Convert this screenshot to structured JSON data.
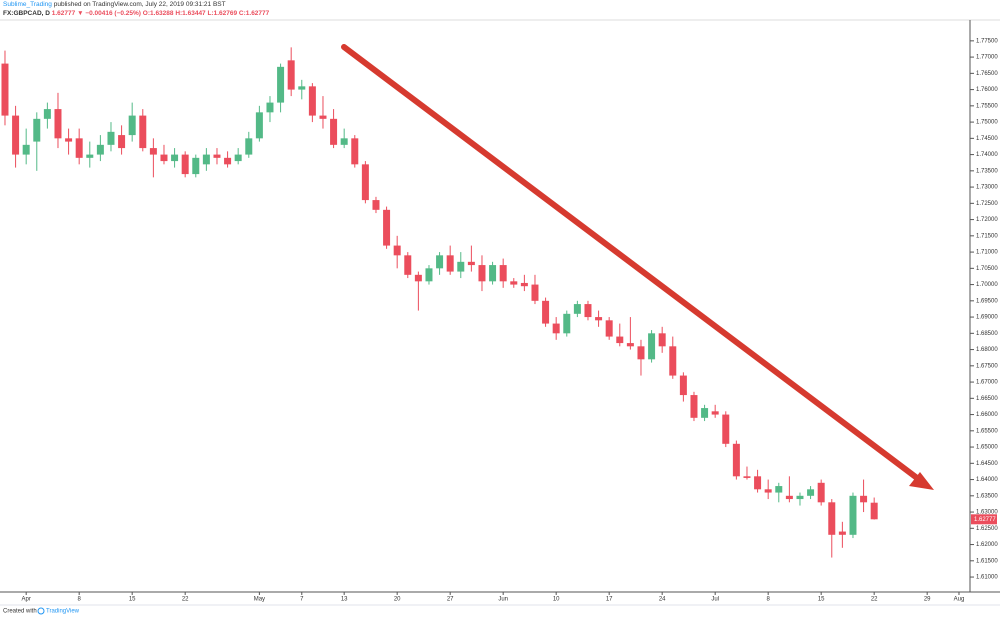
{
  "header": {
    "author": "Sublime_Trading",
    "published": "published on TradingView.com, July 22, 2019 09:31:21 BST",
    "symbol": "FX:GBPCAD, D",
    "last": "1.62777",
    "change": "▼ −0.00416 (−0.25%)",
    "ohlc": "O:1.63288 H:1.63447 L:1.62769 C:1.62777"
  },
  "footer": {
    "created": "Created with",
    "brand": "TradingView"
  },
  "chart_data": {
    "type": "candlestick",
    "up_color": "#53b987",
    "down_color": "#eb4d5c",
    "xlim": [
      -0.47,
      91.04
    ],
    "ylim": [
      1.6054,
      1.7808
    ],
    "xticks": [
      {
        "value": 2,
        "label": "Apr"
      },
      {
        "value": 7,
        "label": "8"
      },
      {
        "value": 12,
        "label": "15"
      },
      {
        "value": 17,
        "label": "22"
      },
      {
        "value": 24,
        "label": "May"
      },
      {
        "value": 28,
        "label": "7"
      },
      {
        "value": 32,
        "label": "13"
      },
      {
        "value": 37,
        "label": "20"
      },
      {
        "value": 42,
        "label": "27"
      },
      {
        "value": 47,
        "label": "Jun"
      },
      {
        "value": 52,
        "label": "10"
      },
      {
        "value": 57,
        "label": "17"
      },
      {
        "value": 62,
        "label": "24"
      },
      {
        "value": 67,
        "label": "Jul"
      },
      {
        "value": 72,
        "label": "8"
      },
      {
        "value": 77,
        "label": "15"
      },
      {
        "value": 82,
        "label": "22"
      },
      {
        "value": 87,
        "label": "29"
      },
      {
        "value": 90,
        "label": "Aug"
      }
    ],
    "yticks": [
      {
        "value": 1.61,
        "label": "1.61000"
      },
      {
        "value": 1.615,
        "label": "1.61500"
      },
      {
        "value": 1.62,
        "label": "1.62000"
      },
      {
        "value": 1.625,
        "label": "1.62500"
      },
      {
        "value": 1.63,
        "label": "1.63000"
      },
      {
        "value": 1.635,
        "label": "1.63500"
      },
      {
        "value": 1.64,
        "label": "1.64000"
      },
      {
        "value": 1.645,
        "label": "1.64500"
      },
      {
        "value": 1.65,
        "label": "1.65000"
      },
      {
        "value": 1.655,
        "label": "1.65500"
      },
      {
        "value": 1.66,
        "label": "1.66000"
      },
      {
        "value": 1.665,
        "label": "1.66500"
      },
      {
        "value": 1.67,
        "label": "1.67000"
      },
      {
        "value": 1.675,
        "label": "1.67500"
      },
      {
        "value": 1.68,
        "label": "1.68000"
      },
      {
        "value": 1.685,
        "label": "1.68500"
      },
      {
        "value": 1.69,
        "label": "1.69000"
      },
      {
        "value": 1.695,
        "label": "1.69500"
      },
      {
        "value": 1.7,
        "label": "1.70000"
      },
      {
        "value": 1.705,
        "label": "1.70500"
      },
      {
        "value": 1.71,
        "label": "1.71000"
      },
      {
        "value": 1.715,
        "label": "1.71500"
      },
      {
        "value": 1.72,
        "label": "1.72000"
      },
      {
        "value": 1.725,
        "label": "1.72500"
      },
      {
        "value": 1.73,
        "label": "1.73000"
      },
      {
        "value": 1.735,
        "label": "1.73500"
      },
      {
        "value": 1.74,
        "label": "1.74000"
      },
      {
        "value": 1.745,
        "label": "1.74500"
      },
      {
        "value": 1.75,
        "label": "1.75000"
      },
      {
        "value": 1.755,
        "label": "1.75500"
      },
      {
        "value": 1.76,
        "label": "1.76000"
      },
      {
        "value": 1.765,
        "label": "1.76500"
      },
      {
        "value": 1.77,
        "label": "1.77000"
      },
      {
        "value": 1.775,
        "label": "1.77500"
      }
    ],
    "last_price": {
      "value": 1.62777,
      "label": "1.62777"
    },
    "x": [
      0,
      1,
      2,
      3,
      4,
      5,
      6,
      7,
      8,
      9,
      10,
      11,
      12,
      13,
      14,
      15,
      16,
      17,
      18,
      19,
      20,
      21,
      22,
      23,
      24,
      25,
      26,
      27,
      28,
      29,
      30,
      31,
      32,
      33,
      34,
      35,
      36,
      37,
      38,
      39,
      40,
      41,
      42,
      43,
      44,
      45,
      46,
      47,
      48,
      49,
      50,
      51,
      52,
      53,
      54,
      55,
      56,
      57,
      58,
      59,
      60,
      61,
      62,
      63,
      64,
      65,
      66,
      67,
      68,
      69,
      70,
      71,
      72,
      73,
      74,
      75,
      76,
      77,
      78,
      79,
      80,
      81,
      82
    ],
    "open": [
      1.768,
      1.752,
      1.74,
      1.744,
      1.751,
      1.754,
      1.745,
      1.745,
      1.739,
      1.74,
      1.743,
      1.746,
      1.746,
      1.752,
      1.742,
      1.74,
      1.738,
      1.74,
      1.734,
      1.737,
      1.74,
      1.739,
      1.738,
      1.74,
      1.745,
      1.753,
      1.756,
      1.769,
      1.76,
      1.761,
      1.752,
      1.751,
      1.743,
      1.745,
      1.737,
      1.726,
      1.723,
      1.712,
      1.709,
      1.703,
      1.701,
      1.705,
      1.709,
      1.704,
      1.707,
      1.706,
      1.701,
      1.706,
      1.701,
      1.7005,
      1.7,
      1.695,
      1.688,
      1.685,
      1.691,
      1.694,
      1.69,
      1.689,
      1.684,
      1.682,
      1.681,
      1.677,
      1.685,
      1.681,
      1.672,
      1.666,
      1.659,
      1.661,
      1.66,
      1.651,
      1.641,
      1.641,
      1.637,
      1.636,
      1.635,
      1.634,
      1.635,
      1.639,
      1.633,
      1.624,
      1.623,
      1.635,
      1.63288
    ],
    "high": [
      1.772,
      1.755,
      1.748,
      1.753,
      1.756,
      1.759,
      1.748,
      1.748,
      1.744,
      1.746,
      1.75,
      1.749,
      1.756,
      1.754,
      1.745,
      1.743,
      1.742,
      1.741,
      1.74,
      1.742,
      1.742,
      1.741,
      1.742,
      1.747,
      1.755,
      1.758,
      1.768,
      1.773,
      1.763,
      1.762,
      1.758,
      1.754,
      1.748,
      1.746,
      1.738,
      1.727,
      1.724,
      1.715,
      1.71,
      1.704,
      1.706,
      1.71,
      1.712,
      1.71,
      1.712,
      1.709,
      1.707,
      1.708,
      1.702,
      1.703,
      1.703,
      1.696,
      1.69,
      1.692,
      1.695,
      1.695,
      1.692,
      1.69,
      1.688,
      1.69,
      1.683,
      1.686,
      1.687,
      1.684,
      1.673,
      1.667,
      1.663,
      1.663,
      1.661,
      1.652,
      1.644,
      1.643,
      1.64,
      1.639,
      1.641,
      1.636,
      1.638,
      1.64,
      1.634,
      1.627,
      1.636,
      1.64,
      1.63447
    ],
    "low": [
      1.749,
      1.736,
      1.737,
      1.735,
      1.748,
      1.742,
      1.74,
      1.737,
      1.736,
      1.738,
      1.741,
      1.74,
      1.744,
      1.741,
      1.733,
      1.737,
      1.736,
      1.733,
      1.733,
      1.735,
      1.737,
      1.736,
      1.737,
      1.739,
      1.744,
      1.75,
      1.753,
      1.758,
      1.757,
      1.75,
      1.748,
      1.742,
      1.742,
      1.736,
      1.725,
      1.722,
      1.711,
      1.705,
      1.702,
      1.692,
      1.7,
      1.703,
      1.703,
      1.702,
      1.704,
      1.698,
      1.7,
      1.699,
      1.699,
      1.698,
      1.694,
      1.687,
      1.683,
      1.684,
      1.69,
      1.689,
      1.687,
      1.683,
      1.681,
      1.68,
      1.672,
      1.676,
      1.679,
      1.671,
      1.664,
      1.658,
      1.658,
      1.659,
      1.65,
      1.64,
      1.64,
      1.636,
      1.634,
      1.633,
      1.633,
      1.632,
      1.634,
      1.632,
      1.616,
      1.619,
      1.622,
      1.63,
      1.62769
    ],
    "close": [
      1.752,
      1.74,
      1.743,
      1.751,
      1.754,
      1.745,
      1.744,
      1.739,
      1.74,
      1.743,
      1.747,
      1.742,
      1.752,
      1.742,
      1.74,
      1.738,
      1.74,
      1.734,
      1.739,
      1.74,
      1.739,
      1.737,
      1.74,
      1.745,
      1.753,
      1.756,
      1.767,
      1.76,
      1.761,
      1.752,
      1.751,
      1.743,
      1.745,
      1.737,
      1.726,
      1.723,
      1.712,
      1.709,
      1.703,
      1.701,
      1.705,
      1.709,
      1.704,
      1.707,
      1.706,
      1.701,
      1.706,
      1.701,
      1.7,
      1.6995,
      1.695,
      1.688,
      1.685,
      1.691,
      1.694,
      1.69,
      1.689,
      1.684,
      1.682,
      1.681,
      1.677,
      1.685,
      1.681,
      1.672,
      1.666,
      1.659,
      1.662,
      1.66,
      1.651,
      1.641,
      1.6405,
      1.637,
      1.636,
      1.638,
      1.634,
      1.635,
      1.637,
      1.633,
      1.623,
      1.623,
      1.635,
      1.633,
      1.62777
    ]
  }
}
